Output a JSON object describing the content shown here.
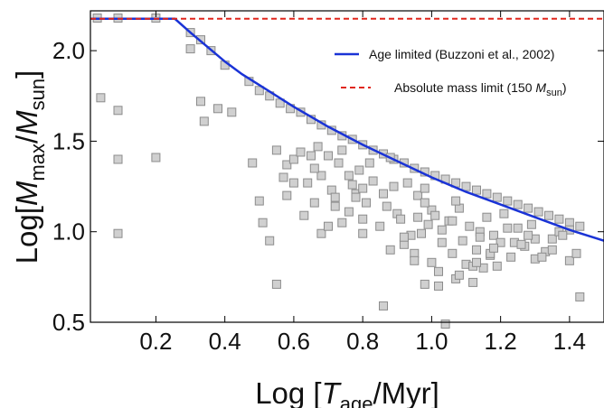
{
  "chart_data": {
    "type": "scatter",
    "xlabel": {
      "pre": "Log [",
      "var": "T",
      "sub": "age",
      "post": "/Myr]"
    },
    "ylabel": {
      "pre": "Log[",
      "var1": "M",
      "sub1": "max",
      "mid": "/",
      "var2": "M",
      "sub2": "sun",
      "post": "]"
    },
    "xlim": [
      0.01,
      1.5
    ],
    "ylim": [
      0.5,
      2.22
    ],
    "x_ticks": [
      "0.2",
      "0.4",
      "0.6",
      "0.8",
      "1.0",
      "1.2",
      "1.4"
    ],
    "y_ticks": [
      "0.5",
      "1.0",
      "1.5",
      "2.0"
    ],
    "legend_position": "top-right",
    "colors": {
      "age_line": "#1a33d6",
      "mass_line": "#e0261c",
      "points_fill": "#d0d0d0",
      "points_edge": "#8c8c8c"
    },
    "lines": [
      {
        "name": "Age limited (Buzzoni et al., 2002)",
        "style": "solid",
        "x": [
          0.01,
          0.255,
          0.3,
          0.35,
          0.4,
          0.45,
          0.5,
          0.6,
          0.7,
          0.8,
          0.9,
          1.0,
          1.1,
          1.2,
          1.3,
          1.4,
          1.5
        ],
        "y": [
          2.176,
          2.176,
          2.1,
          2.02,
          1.94,
          1.87,
          1.81,
          1.69,
          1.58,
          1.48,
          1.39,
          1.3,
          1.22,
          1.15,
          1.08,
          1.01,
          0.95
        ]
      },
      {
        "name": "Absolute mass limit (150 M_sun)",
        "label_pre": "Absolute mass limit (150 ",
        "label_var": "M",
        "label_sub": "sun",
        "label_post": ")",
        "style": "dashed",
        "x": [
          0.01,
          1.5
        ],
        "y": [
          2.176,
          2.176
        ]
      }
    ],
    "points": {
      "x": [
        0.03,
        0.09,
        0.2,
        0.3,
        0.33,
        0.36,
        0.4,
        0.47,
        0.5,
        0.53,
        0.56,
        0.59,
        0.62,
        0.65,
        0.68,
        0.71,
        0.74,
        0.77,
        0.8,
        0.83,
        0.86,
        0.89,
        0.92,
        0.95,
        0.98,
        1.01,
        1.04,
        1.07,
        1.1,
        1.13,
        1.16,
        1.19,
        1.22,
        1.25,
        1.28,
        1.31,
        1.34,
        1.37,
        1.4,
        1.43,
        0.04,
        0.09,
        0.09,
        0.09,
        0.2,
        0.3,
        0.33,
        0.38,
        0.34,
        0.42,
        0.48,
        0.5,
        0.55,
        0.51,
        0.57,
        0.53,
        0.55,
        0.58,
        0.58,
        0.6,
        0.6,
        0.62,
        0.63,
        0.64,
        0.65,
        0.66,
        0.67,
        0.68,
        0.68,
        0.7,
        0.7,
        0.71,
        0.72,
        0.73,
        0.74,
        0.76,
        0.76,
        0.77,
        0.78,
        0.79,
        0.8,
        0.8,
        0.81,
        0.82,
        0.83,
        0.85,
        0.86,
        0.87,
        0.88,
        0.89,
        0.9,
        0.91,
        0.92,
        0.93,
        0.94,
        0.95,
        0.96,
        0.97,
        0.98,
        0.98,
        0.99,
        1.0,
        1.0,
        1.02,
        1.03,
        1.04,
        1.05,
        1.06,
        1.07,
        1.08,
        1.09,
        1.1,
        1.11,
        1.12,
        1.13,
        1.14,
        1.15,
        1.16,
        1.17,
        1.18,
        1.2,
        1.21,
        1.23,
        1.25,
        1.27,
        1.29,
        1.3,
        1.33,
        1.35,
        1.37,
        1.4,
        1.42,
        0.72,
        0.8,
        0.92,
        0.98,
        1.03,
        1.08,
        1.14,
        1.19,
        1.24,
        1.3,
        1.4,
        0.66,
        0.74,
        0.88,
        0.96,
        1.02,
        1.07,
        1.12,
        1.17,
        1.22,
        1.28,
        1.35,
        1.43,
        0.78,
        0.86,
        0.95,
        1.01,
        1.06,
        1.13,
        1.18,
        1.26,
        1.32,
        1.38
      ],
      "y": [
        2.18,
        2.18,
        2.18,
        2.1,
        2.06,
        2.0,
        1.92,
        1.83,
        1.78,
        1.75,
        1.71,
        1.68,
        1.66,
        1.62,
        1.59,
        1.56,
        1.53,
        1.51,
        1.48,
        1.45,
        1.43,
        1.4,
        1.38,
        1.35,
        1.33,
        1.31,
        1.29,
        1.27,
        1.25,
        1.23,
        1.21,
        1.19,
        1.17,
        1.15,
        1.13,
        1.11,
        1.09,
        1.07,
        1.05,
        1.03,
        1.74,
        1.67,
        1.4,
        0.99,
        1.41,
        2.01,
        1.72,
        1.68,
        1.61,
        1.66,
        1.38,
        1.17,
        1.45,
        1.05,
        1.3,
        0.95,
        0.71,
        1.37,
        1.2,
        1.27,
        1.4,
        1.44,
        1.09,
        1.27,
        1.42,
        1.16,
        1.47,
        1.31,
        0.99,
        1.03,
        1.42,
        1.23,
        1.19,
        1.38,
        1.45,
        1.11,
        1.31,
        1.26,
        1.21,
        1.34,
        0.99,
        1.07,
        1.16,
        1.38,
        1.28,
        1.03,
        0.59,
        1.14,
        1.41,
        1.25,
        1.1,
        1.07,
        0.93,
        1.27,
        0.98,
        0.88,
        1.2,
        0.99,
        0.71,
        1.24,
        1.04,
        0.83,
        1.12,
        0.78,
        0.94,
        0.49,
        1.06,
        0.88,
        0.74,
        1.13,
        0.95,
        0.82,
        1.03,
        0.72,
        0.9,
        1.0,
        0.8,
        1.08,
        0.87,
        0.98,
        0.94,
        1.1,
        0.86,
        1.02,
        0.92,
        1.04,
        0.85,
        0.89,
        0.96,
        1.0,
        0.84,
        0.88,
        1.14,
        1.24,
        0.97,
        1.16,
        1.01,
        0.76,
        0.97,
        0.81,
        0.94,
        0.96,
        1.01,
        1.35,
        1.05,
        0.9,
        1.08,
        0.7,
        1.17,
        0.81,
        0.88,
        1.02,
        0.98,
        0.9,
        0.64,
        1.19,
        1.21,
        0.84,
        1.09,
        1.06,
        0.83,
        0.91,
        0.93,
        0.86,
        0.98
      ]
    }
  }
}
